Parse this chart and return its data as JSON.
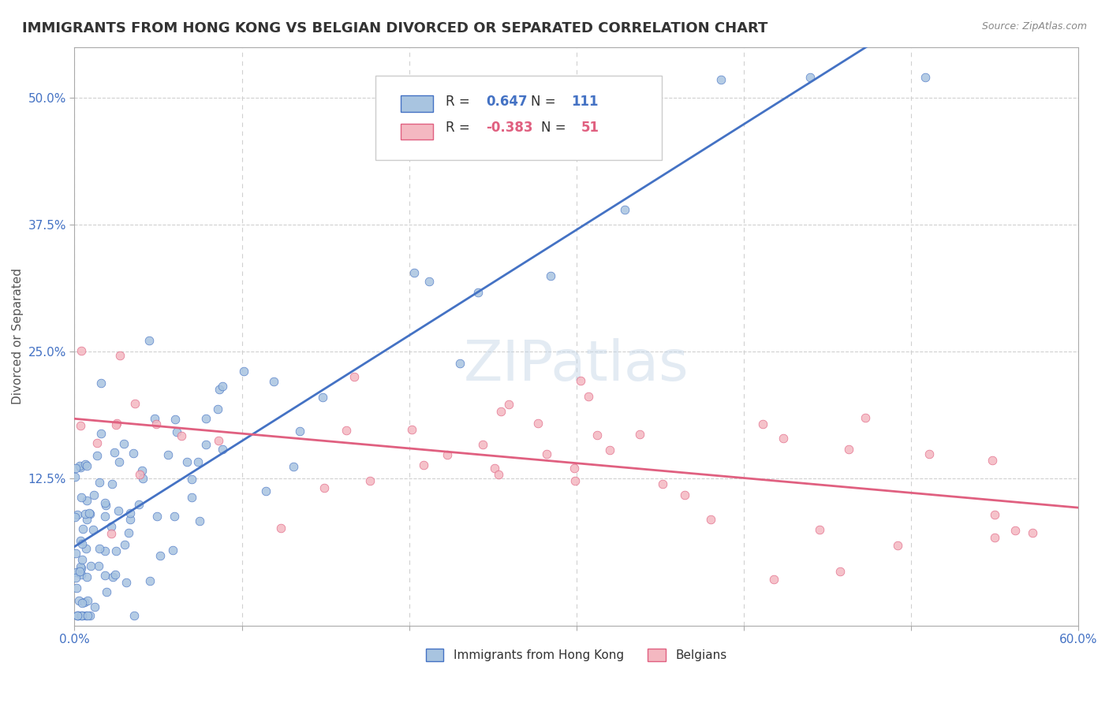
{
  "title": "IMMIGRANTS FROM HONG KONG VS BELGIAN DIVORCED OR SEPARATED CORRELATION CHART",
  "source_text": "Source: ZipAtlas.com",
  "ylabel": "Divorced or Separated",
  "watermark": "ZIPatlas",
  "xlim": [
    0.0,
    0.6
  ],
  "ylim": [
    -0.02,
    0.55
  ],
  "xticks": [
    0.0,
    0.1,
    0.2,
    0.3,
    0.4,
    0.5,
    0.6
  ],
  "xticklabels": [
    "0.0%",
    "",
    "",
    "",
    "",
    "",
    "60.0%"
  ],
  "yticks": [
    0.125,
    0.25,
    0.375,
    0.5
  ],
  "yticklabels": [
    "12.5%",
    "25.0%",
    "37.5%",
    "50.0%"
  ],
  "blue_R": 0.647,
  "blue_N": 111,
  "pink_R": -0.383,
  "pink_N": 51,
  "blue_color": "#a8c4e0",
  "blue_line_color": "#4472c4",
  "pink_color": "#f4b8c1",
  "pink_line_color": "#e06080",
  "title_fontsize": 13,
  "axis_label_fontsize": 11,
  "tick_fontsize": 11,
  "watermark_color": "#c8d8e8",
  "watermark_fontsize": 52,
  "blue_seed": 42,
  "pink_seed": 7,
  "background_color": "#ffffff",
  "grid_color": "#d0d0d0"
}
